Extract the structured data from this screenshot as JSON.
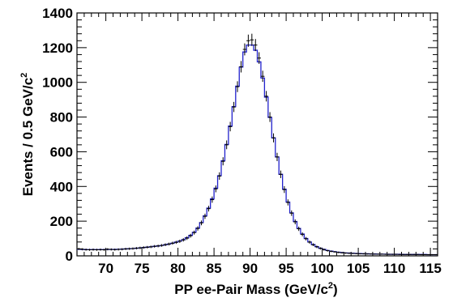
{
  "chart_data": {
    "type": "histogram",
    "xlabel": {
      "text": "PP ee-Pair Mass (GeV/c",
      "sup": "2",
      "tail": ")"
    },
    "ylabel": {
      "text": "Events / 0.5 GeV/c",
      "sup": "2"
    },
    "xlim": [
      66,
      116
    ],
    "ylim": [
      0,
      1400
    ],
    "bin_width": 0.5,
    "x_ticks": [
      70,
      75,
      80,
      85,
      90,
      95,
      100,
      105,
      110,
      115
    ],
    "x_tick_labels": [
      "70",
      "75",
      "80",
      "85",
      "90",
      "95",
      "100",
      "105",
      "110",
      "115"
    ],
    "y_ticks": [
      0,
      200,
      400,
      600,
      800,
      1000,
      1200,
      1400
    ],
    "y_tick_labels": [
      "0",
      "200",
      "400",
      "600",
      "800",
      "1000",
      "1200",
      "1400"
    ],
    "grid": false,
    "line_color": "#2222cc",
    "marker_color": "#000000",
    "series": [
      {
        "kind": "data_points_with_errors",
        "x": [
          66.25,
          66.75,
          67.25,
          67.75,
          68.25,
          68.75,
          69.25,
          69.75,
          70.25,
          70.75,
          71.25,
          71.75,
          72.25,
          72.75,
          73.25,
          73.75,
          74.25,
          74.75,
          75.25,
          75.75,
          76.25,
          76.75,
          77.25,
          77.75,
          78.25,
          78.75,
          79.25,
          79.75,
          80.25,
          80.75,
          81.25,
          81.75,
          82.25,
          82.75,
          83.25,
          83.75,
          84.25,
          84.75,
          85.25,
          85.75,
          86.25,
          86.75,
          87.25,
          87.75,
          88.25,
          88.75,
          89.25,
          89.75,
          90.25,
          90.75,
          91.25,
          91.75,
          92.25,
          92.75,
          93.25,
          93.75,
          94.25,
          94.75,
          95.25,
          95.75,
          96.25,
          96.75,
          97.25,
          97.75,
          98.25,
          98.75,
          99.25,
          99.75,
          100.25,
          100.75,
          101.25,
          101.75,
          102.25,
          102.75,
          103.25,
          103.75,
          104.25,
          104.75,
          105.25,
          105.75,
          106.25,
          106.75,
          107.25,
          107.75,
          108.25,
          108.75,
          109.25,
          109.75,
          110.25,
          110.75,
          111.25,
          111.75,
          112.25,
          112.75,
          113.25,
          113.75,
          114.25,
          114.75,
          115.25,
          115.75
        ],
        "y": [
          40,
          38,
          36,
          35,
          36,
          35,
          36,
          35,
          38,
          37,
          36,
          37,
          38,
          40,
          41,
          42,
          44,
          46,
          48,
          50,
          52,
          55,
          57,
          60,
          64,
          68,
          73,
          78,
          84,
          92,
          102,
          116,
          134,
          158,
          190,
          228,
          272,
          324,
          386,
          460,
          545,
          640,
          745,
          858,
          975,
          1090,
          1190,
          1240,
          1245,
          1215,
          1140,
          1035,
          920,
          800,
          680,
          570,
          470,
          382,
          308,
          246,
          196,
          156,
          124,
          99,
          79,
          64,
          52,
          43,
          36,
          30,
          26,
          23,
          20,
          18,
          16,
          15,
          14,
          13,
          12,
          12,
          11,
          11,
          10,
          10,
          10,
          9,
          9,
          9,
          9,
          8,
          8,
          8,
          8,
          8,
          8,
          7,
          7,
          7,
          7,
          7
        ]
      },
      {
        "kind": "fit_histogram",
        "x": [
          66.25,
          66.75,
          67.25,
          67.75,
          68.25,
          68.75,
          69.25,
          69.75,
          70.25,
          70.75,
          71.25,
          71.75,
          72.25,
          72.75,
          73.25,
          73.75,
          74.25,
          74.75,
          75.25,
          75.75,
          76.25,
          76.75,
          77.25,
          77.75,
          78.25,
          78.75,
          79.25,
          79.75,
          80.25,
          80.75,
          81.25,
          81.75,
          82.25,
          82.75,
          83.25,
          83.75,
          84.25,
          84.75,
          85.25,
          85.75,
          86.25,
          86.75,
          87.25,
          87.75,
          88.25,
          88.75,
          89.25,
          89.75,
          90.25,
          90.75,
          91.25,
          91.75,
          92.25,
          92.75,
          93.25,
          93.75,
          94.25,
          94.75,
          95.25,
          95.75,
          96.25,
          96.75,
          97.25,
          97.75,
          98.25,
          98.75,
          99.25,
          99.75,
          100.25,
          100.75,
          101.25,
          101.75,
          102.25,
          102.75,
          103.25,
          103.75,
          104.25,
          104.75,
          105.25,
          105.75,
          106.25,
          106.75,
          107.25,
          107.75,
          108.25,
          108.75,
          109.25,
          109.75,
          110.25,
          110.75,
          111.25,
          111.75,
          112.25,
          112.75,
          113.25,
          113.75,
          114.25,
          114.75,
          115.25,
          115.75
        ],
        "y": [
          38,
          37,
          36,
          36,
          36,
          36,
          36,
          36,
          37,
          37,
          37,
          38,
          39,
          40,
          41,
          42,
          44,
          46,
          48,
          50,
          52,
          55,
          57,
          60,
          64,
          68,
          73,
          79,
          85,
          93,
          104,
          118,
          136,
          160,
          192,
          230,
          275,
          328,
          390,
          462,
          548,
          642,
          748,
          860,
          978,
          1088,
          1175,
          1215,
          1215,
          1185,
          1118,
          1025,
          915,
          798,
          680,
          570,
          470,
          384,
          310,
          248,
          198,
          158,
          126,
          100,
          80,
          65,
          53,
          44,
          37,
          31,
          27,
          24,
          21,
          19,
          17,
          16,
          15,
          14,
          13,
          12,
          12,
          11,
          11,
          10,
          10,
          10,
          9,
          9,
          9,
          9,
          8,
          8,
          8,
          8,
          8,
          8,
          8,
          7,
          7,
          7
        ]
      }
    ]
  }
}
